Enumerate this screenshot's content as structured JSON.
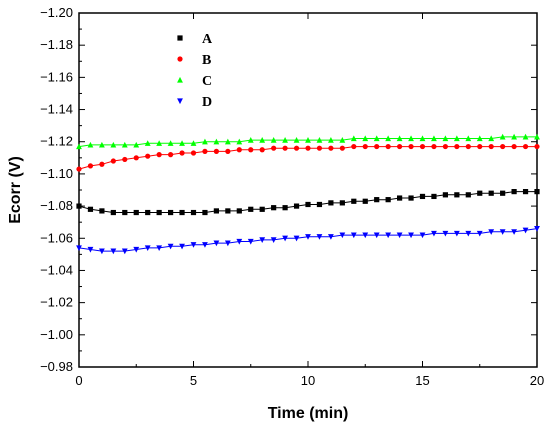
{
  "chart_data": {
    "type": "scatter",
    "xlabel": "Time (min)",
    "ylabel": "Ecorr (V)",
    "xlim": [
      0,
      20
    ],
    "ylim": [
      -0.98,
      -1.2
    ],
    "xticks": [
      0,
      5,
      10,
      15,
      20
    ],
    "xtick_labels": [
      "0",
      "5",
      "10",
      "15",
      "20"
    ],
    "yticks": [
      -0.98,
      -1.0,
      -1.02,
      -1.04,
      -1.06,
      -1.08,
      -1.1,
      -1.12,
      -1.14,
      -1.16,
      -1.18,
      -1.2
    ],
    "ytick_labels": [
      "-0.98",
      "-1.00",
      "-1.02",
      "-1.04",
      "-1.06",
      "-1.08",
      "-1.10",
      "-1.12",
      "-1.14",
      "-1.16",
      "-1.18",
      "-1.20"
    ],
    "grid": false,
    "legend_position": "top-left",
    "series": [
      {
        "name": "A",
        "color": "#000000",
        "marker": "square",
        "x": [
          0,
          0.5,
          1,
          1.5,
          2,
          2.5,
          3,
          3.5,
          4,
          4.5,
          5,
          5.5,
          6,
          6.5,
          7,
          7.5,
          8,
          8.5,
          9,
          9.5,
          10,
          10.5,
          11,
          11.5,
          12,
          12.5,
          13,
          13.5,
          14,
          14.5,
          15,
          15.5,
          16,
          16.5,
          17,
          17.5,
          18,
          18.5,
          19,
          19.5,
          20
        ],
        "y": [
          -1.08,
          -1.078,
          -1.077,
          -1.076,
          -1.076,
          -1.076,
          -1.076,
          -1.076,
          -1.076,
          -1.076,
          -1.076,
          -1.076,
          -1.077,
          -1.077,
          -1.077,
          -1.078,
          -1.078,
          -1.079,
          -1.079,
          -1.08,
          -1.081,
          -1.081,
          -1.082,
          -1.082,
          -1.083,
          -1.083,
          -1.084,
          -1.084,
          -1.085,
          -1.085,
          -1.086,
          -1.086,
          -1.087,
          -1.087,
          -1.087,
          -1.088,
          -1.088,
          -1.088,
          -1.089,
          -1.089,
          -1.089
        ]
      },
      {
        "name": "B",
        "color": "#ff0000",
        "marker": "circle",
        "x": [
          0,
          0.5,
          1,
          1.5,
          2,
          2.5,
          3,
          3.5,
          4,
          4.5,
          5,
          5.5,
          6,
          6.5,
          7,
          7.5,
          8,
          8.5,
          9,
          9.5,
          10,
          10.5,
          11,
          11.5,
          12,
          12.5,
          13,
          13.5,
          14,
          14.5,
          15,
          15.5,
          16,
          16.5,
          17,
          17.5,
          18,
          18.5,
          19,
          19.5,
          20
        ],
        "y": [
          -1.103,
          -1.105,
          -1.106,
          -1.108,
          -1.109,
          -1.11,
          -1.111,
          -1.112,
          -1.112,
          -1.113,
          -1.113,
          -1.114,
          -1.114,
          -1.114,
          -1.115,
          -1.115,
          -1.115,
          -1.116,
          -1.116,
          -1.116,
          -1.116,
          -1.116,
          -1.116,
          -1.116,
          -1.117,
          -1.117,
          -1.117,
          -1.117,
          -1.117,
          -1.117,
          -1.117,
          -1.117,
          -1.117,
          -1.117,
          -1.117,
          -1.117,
          -1.117,
          -1.117,
          -1.117,
          -1.117,
          -1.117
        ]
      },
      {
        "name": "C",
        "color": "#00ff00",
        "marker": "triangle-up",
        "x": [
          0,
          0.5,
          1,
          1.5,
          2,
          2.5,
          3,
          3.5,
          4,
          4.5,
          5,
          5.5,
          6,
          6.5,
          7,
          7.5,
          8,
          8.5,
          9,
          9.5,
          10,
          10.5,
          11,
          11.5,
          12,
          12.5,
          13,
          13.5,
          14,
          14.5,
          15,
          15.5,
          16,
          16.5,
          17,
          17.5,
          18,
          18.5,
          19,
          19.5,
          20
        ],
        "y": [
          -1.117,
          -1.118,
          -1.118,
          -1.118,
          -1.118,
          -1.118,
          -1.119,
          -1.119,
          -1.119,
          -1.119,
          -1.119,
          -1.12,
          -1.12,
          -1.12,
          -1.12,
          -1.121,
          -1.121,
          -1.121,
          -1.121,
          -1.121,
          -1.121,
          -1.121,
          -1.121,
          -1.121,
          -1.122,
          -1.122,
          -1.122,
          -1.122,
          -1.122,
          -1.122,
          -1.122,
          -1.122,
          -1.122,
          -1.122,
          -1.122,
          -1.122,
          -1.122,
          -1.123,
          -1.123,
          -1.123,
          -1.123
        ]
      },
      {
        "name": "D",
        "color": "#0000ff",
        "marker": "triangle-down",
        "x": [
          0,
          0.5,
          1,
          1.5,
          2,
          2.5,
          3,
          3.5,
          4,
          4.5,
          5,
          5.5,
          6,
          6.5,
          7,
          7.5,
          8,
          8.5,
          9,
          9.5,
          10,
          10.5,
          11,
          11.5,
          12,
          12.5,
          13,
          13.5,
          14,
          14.5,
          15,
          15.5,
          16,
          16.5,
          17,
          17.5,
          18,
          18.5,
          19,
          19.5,
          20
        ],
        "y": [
          -1.054,
          -1.053,
          -1.052,
          -1.052,
          -1.052,
          -1.053,
          -1.054,
          -1.054,
          -1.055,
          -1.055,
          -1.056,
          -1.056,
          -1.057,
          -1.057,
          -1.058,
          -1.058,
          -1.059,
          -1.059,
          -1.06,
          -1.06,
          -1.061,
          -1.061,
          -1.061,
          -1.062,
          -1.062,
          -1.062,
          -1.062,
          -1.062,
          -1.062,
          -1.062,
          -1.062,
          -1.063,
          -1.063,
          -1.063,
          -1.063,
          -1.063,
          -1.064,
          -1.064,
          -1.064,
          -1.065,
          -1.066
        ]
      }
    ]
  }
}
